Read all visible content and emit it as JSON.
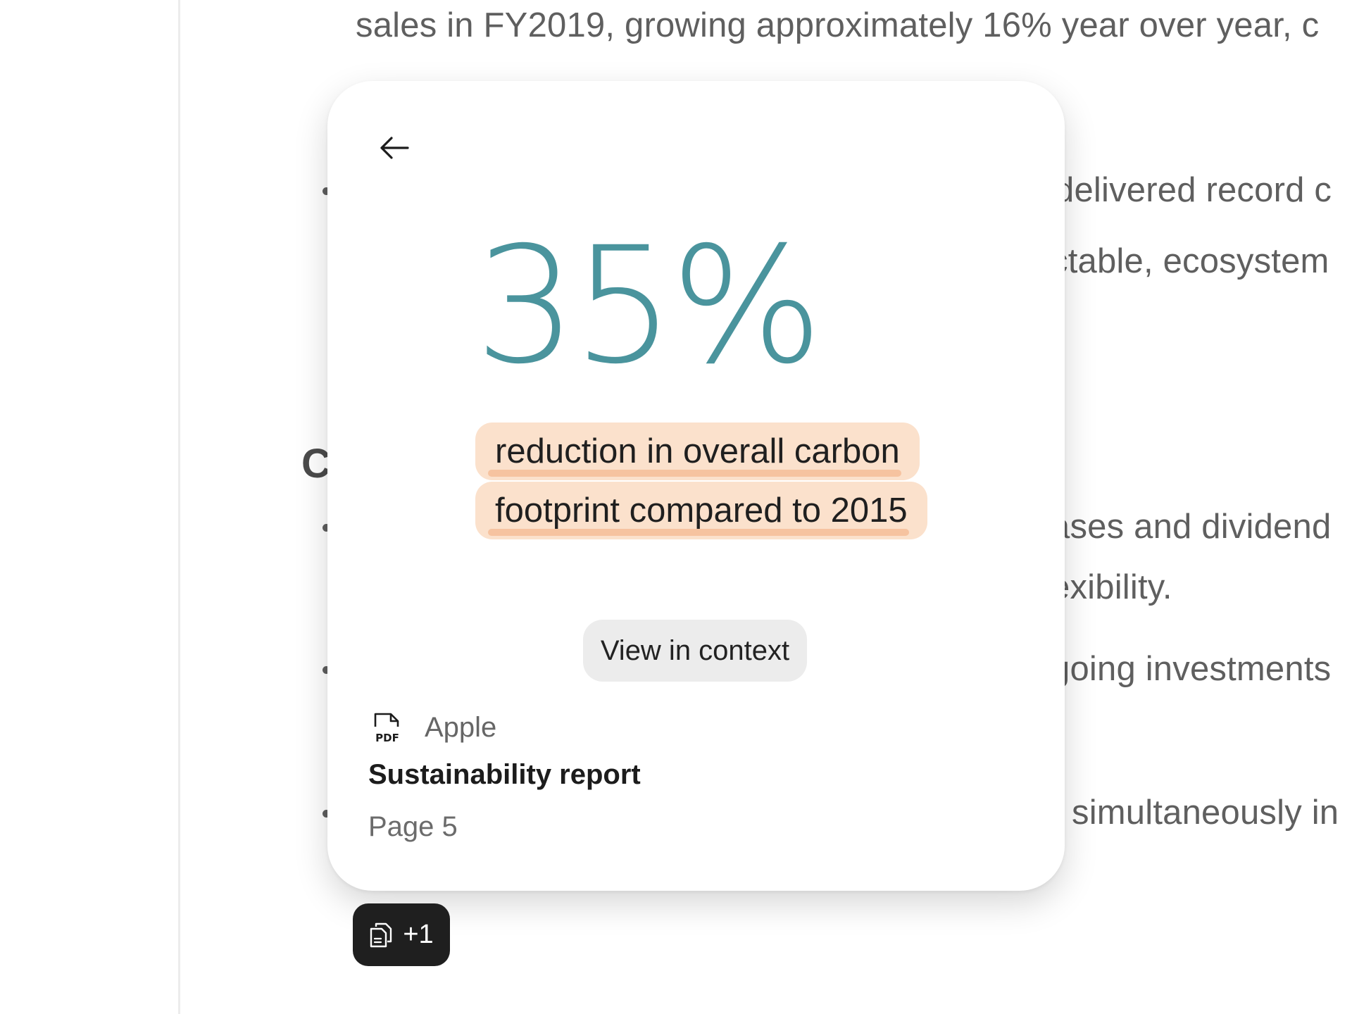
{
  "document": {
    "lines": [
      "sales in FY2019, growing approximately 16% year over year, c",
      "delivered record c",
      "ctable, ecosystem",
      "ases and dividend",
      "exibility.",
      "going investments",
      "simultaneously in"
    ],
    "heading_fragment": "C"
  },
  "popup": {
    "stat_value": "35%",
    "highlight_lines": [
      "reduction in overall carbon",
      "footprint compared to 2015"
    ],
    "view_button_label": "View in context",
    "source": {
      "company": "Apple",
      "title": "Sustainability report",
      "page": "Page 5",
      "file_icon_label": "PDF"
    }
  },
  "sources_chip": {
    "label": "+1"
  },
  "colors": {
    "stat": "#4a949d",
    "highlight_bg": "#fbe1cc",
    "highlight_underline": "#f6c3a0",
    "chip_bg": "#1f1f1f"
  }
}
